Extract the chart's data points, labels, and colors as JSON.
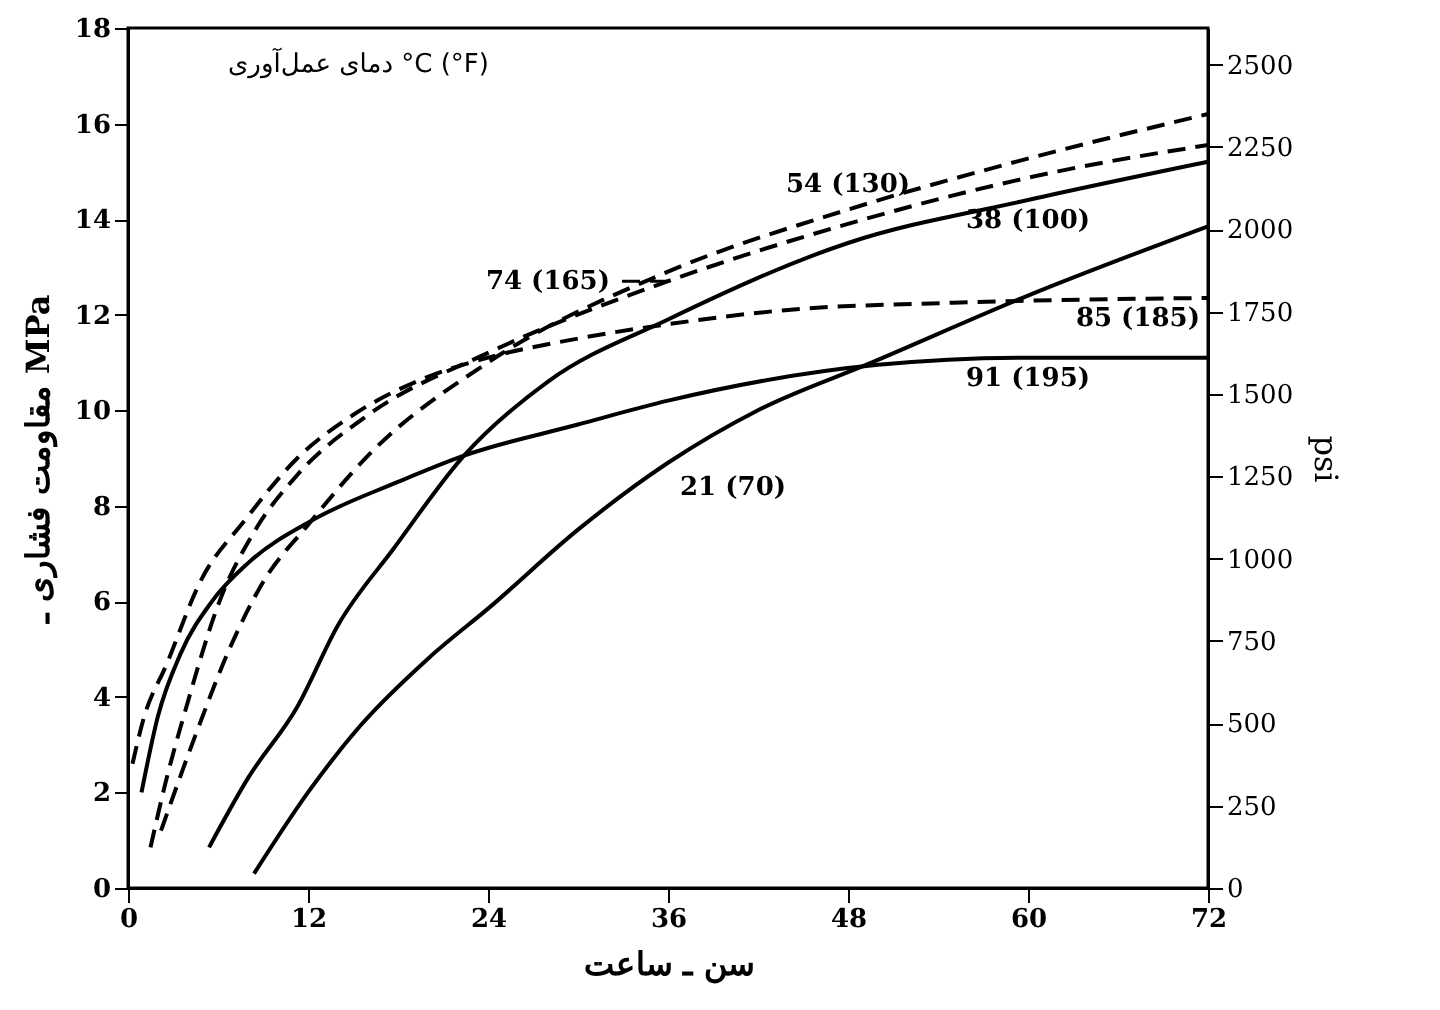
{
  "chart_data": {
    "type": "line",
    "xlabel": "سن ـ ساعت",
    "ylabel": "مقاومت فشاری ـ MPa",
    "y2label": "psi",
    "annotations": [
      "دمای عمل‌آوری  °C (°F)"
    ],
    "xlim": [
      0,
      72
    ],
    "xticks": [
      0,
      12,
      24,
      36,
      48,
      60,
      72
    ],
    "ylim": [
      0,
      18
    ],
    "yticks": [
      0,
      2,
      4,
      6,
      8,
      10,
      12,
      14,
      16,
      18
    ],
    "y2lim": [
      0,
      2611
    ],
    "y2ticks": [
      0,
      250,
      500,
      750,
      1000,
      1250,
      1500,
      1750,
      2000,
      2250,
      2500
    ],
    "grid": false,
    "marker": "none",
    "series": [
      {
        "name": "54 (130)",
        "color": "#000000",
        "line_style": "dashed",
        "x": [
          2.2,
          4.5,
          6.9,
          9,
          12,
          16,
          24,
          36,
          48,
          58,
          72
        ],
        "values": [
          1.2,
          3.2,
          5.1,
          6.4,
          7.6,
          9.05,
          11,
          12.9,
          14.2,
          15.1,
          16.2
        ]
      },
      {
        "name": "74 (165)",
        "color": "#000000",
        "line_style": "dashed",
        "x": [
          1.5,
          2.5,
          3.9,
          6.1,
          8.5,
          11.3,
          16,
          24,
          36,
          48,
          62,
          72
        ],
        "values": [
          0.85,
          2.2,
          3.8,
          6,
          7.5,
          8.65,
          9.9,
          11.2,
          12.7,
          13.9,
          15,
          15.55
        ]
      },
      {
        "name": "38 (100)",
        "color": "#000000",
        "line_style": "solid",
        "x": [
          5.4,
          8,
          11.3,
          14,
          17.7,
          22.4,
          28,
          36,
          48,
          60,
          72
        ],
        "values": [
          0.85,
          2.3,
          3.8,
          5.5,
          7.1,
          9.05,
          10.6,
          11.9,
          13.5,
          14.4,
          15.2
        ]
      },
      {
        "name": "85 (185)",
        "color": "#000000",
        "line_style": "dashed",
        "x": [
          0.3,
          1,
          2.6,
          4.8,
          7.8,
          11.3,
          15,
          20,
          24,
          30,
          36,
          44,
          55,
          72
        ],
        "values": [
          2.6,
          3.5,
          4.7,
          6.4,
          7.7,
          9,
          9.9,
          10.7,
          11.1,
          11.5,
          11.8,
          12.1,
          12.25,
          12.35
        ]
      },
      {
        "name": "91 (195)",
        "color": "#000000",
        "line_style": "solid",
        "x": [
          0.9,
          2,
          3.5,
          5.6,
          8,
          12.3,
          18,
          22.4,
          30,
          36,
          50,
          60,
          72
        ],
        "values": [
          2,
          3.6,
          4.9,
          6,
          6.8,
          7.7,
          8.5,
          9.05,
          9.7,
          10.2,
          10.95,
          11.1,
          11.1
        ]
      },
      {
        "name": "21 (70)",
        "color": "#000000",
        "line_style": "solid",
        "x": [
          8.4,
          12,
          15.5,
          20,
          24.2,
          30,
          36,
          42,
          49.6,
          60,
          72
        ],
        "values": [
          0.3,
          2,
          3.4,
          4.8,
          5.9,
          7.5,
          8.9,
          10,
          11,
          12.4,
          13.85
        ]
      }
    ]
  }
}
